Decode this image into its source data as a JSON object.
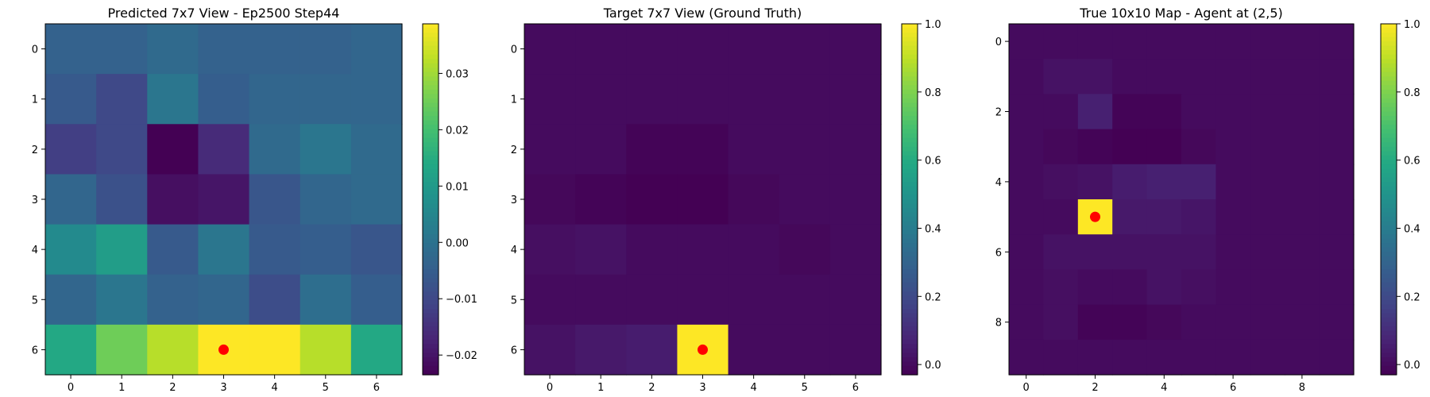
{
  "chart_data": [
    {
      "type": "heatmap",
      "title": "Predicted 7x7 View - Ep2500 Step44",
      "rows": 7,
      "cols": 7,
      "x_ticks": [
        0,
        1,
        2,
        3,
        4,
        5,
        6
      ],
      "y_ticks": [
        0,
        1,
        2,
        3,
        4,
        5,
        6
      ],
      "values": [
        [
          -0.004,
          -0.004,
          -0.002,
          -0.004,
          -0.004,
          -0.004,
          -0.003
        ],
        [
          -0.006,
          -0.01,
          0.001,
          -0.005,
          -0.003,
          -0.003,
          -0.003
        ],
        [
          -0.012,
          -0.01,
          -0.024,
          -0.016,
          -0.002,
          0.001,
          -0.002
        ],
        [
          -0.003,
          -0.008,
          -0.021,
          -0.02,
          -0.007,
          -0.003,
          -0.002
        ],
        [
          0.006,
          0.011,
          -0.006,
          0.001,
          -0.006,
          -0.005,
          -0.007
        ],
        [
          -0.003,
          0.001,
          -0.004,
          -0.003,
          -0.009,
          -0.001,
          -0.005
        ],
        [
          0.014,
          0.025,
          0.032,
          0.039,
          0.039,
          0.032,
          0.014
        ]
      ],
      "vmin": -0.0235,
      "vmax": 0.0388,
      "colorbar_ticks": [
        "0.03",
        "0.02",
        "0.01",
        "0.00",
        "−0.01",
        "−0.02"
      ],
      "colorbar_tick_values": [
        0.03,
        0.02,
        0.01,
        0.0,
        -0.01,
        -0.02
      ],
      "marker": {
        "row": 6,
        "col": 3,
        "color": "#ff0000"
      }
    },
    {
      "type": "heatmap",
      "title": "Target 7x7 View (Ground Truth)",
      "rows": 7,
      "cols": 7,
      "x_ticks": [
        0,
        1,
        2,
        3,
        4,
        5,
        6
      ],
      "y_ticks": [
        0,
        1,
        2,
        3,
        4,
        5,
        6
      ],
      "values": [
        [
          0.0,
          0.0,
          0.0,
          0.0,
          0.0,
          0.0,
          0.0
        ],
        [
          0.0,
          0.0,
          0.0,
          0.0,
          0.0,
          0.0,
          0.0
        ],
        [
          0.0,
          0.0,
          -0.02,
          -0.02,
          0.0,
          0.0,
          0.0
        ],
        [
          -0.01,
          -0.02,
          -0.03,
          -0.03,
          -0.01,
          0.0,
          0.0
        ],
        [
          0.01,
          0.02,
          0.0,
          0.0,
          0.0,
          -0.01,
          0.0
        ],
        [
          0.0,
          0.0,
          0.0,
          0.0,
          0.0,
          0.0,
          0.0
        ],
        [
          0.02,
          0.04,
          0.05,
          1.0,
          0.0,
          0.0,
          0.0
        ]
      ],
      "vmin": -0.03,
      "vmax": 1.0,
      "colorbar_ticks": [
        "1.0",
        "0.8",
        "0.6",
        "0.4",
        "0.2",
        "0.0"
      ],
      "colorbar_tick_values": [
        1.0,
        0.8,
        0.6,
        0.4,
        0.2,
        0.0
      ],
      "marker": {
        "row": 6,
        "col": 3,
        "color": "#ff0000"
      }
    },
    {
      "type": "heatmap",
      "title": "True 10x10 Map - Agent at (2,5)",
      "rows": 10,
      "cols": 10,
      "x_ticks": [
        0,
        2,
        4,
        6,
        8
      ],
      "y_ticks": [
        0,
        2,
        4,
        6,
        8
      ],
      "values": [
        [
          0.0,
          0.0,
          0.0,
          0.0,
          0.0,
          0.0,
          0.0,
          0.0,
          0.0,
          0.0
        ],
        [
          0.0,
          0.02,
          0.02,
          0.0,
          0.0,
          0.0,
          0.0,
          0.0,
          0.0,
          0.0
        ],
        [
          0.0,
          0.0,
          0.06,
          -0.02,
          -0.02,
          0.0,
          0.0,
          0.0,
          0.0,
          0.0
        ],
        [
          0.0,
          -0.01,
          -0.02,
          -0.03,
          -0.03,
          -0.01,
          0.0,
          0.0,
          0.0,
          0.0
        ],
        [
          0.0,
          0.01,
          0.02,
          0.05,
          0.06,
          0.06,
          0.0,
          0.0,
          0.0,
          0.0
        ],
        [
          0.0,
          0.0,
          1.0,
          0.04,
          0.04,
          0.03,
          0.0,
          0.0,
          0.0,
          0.0
        ],
        [
          0.0,
          0.02,
          0.02,
          0.02,
          0.02,
          0.02,
          0.0,
          0.0,
          0.0,
          0.0
        ],
        [
          0.0,
          0.01,
          0.0,
          0.0,
          0.02,
          0.01,
          0.0,
          0.0,
          0.0,
          0.0
        ],
        [
          0.0,
          0.01,
          -0.02,
          -0.02,
          -0.01,
          0.0,
          0.0,
          0.0,
          0.0,
          0.0
        ],
        [
          0.0,
          0.0,
          0.0,
          0.0,
          0.0,
          0.0,
          0.0,
          0.0,
          0.0,
          0.0
        ]
      ],
      "vmin": -0.03,
      "vmax": 1.0,
      "colorbar_ticks": [
        "1.0",
        "0.8",
        "0.6",
        "0.4",
        "0.2",
        "0.0"
      ],
      "colorbar_tick_values": [
        1.0,
        0.8,
        0.6,
        0.4,
        0.2,
        0.0
      ],
      "marker": {
        "row": 5,
        "col": 2,
        "color": "#ff0000"
      }
    }
  ]
}
